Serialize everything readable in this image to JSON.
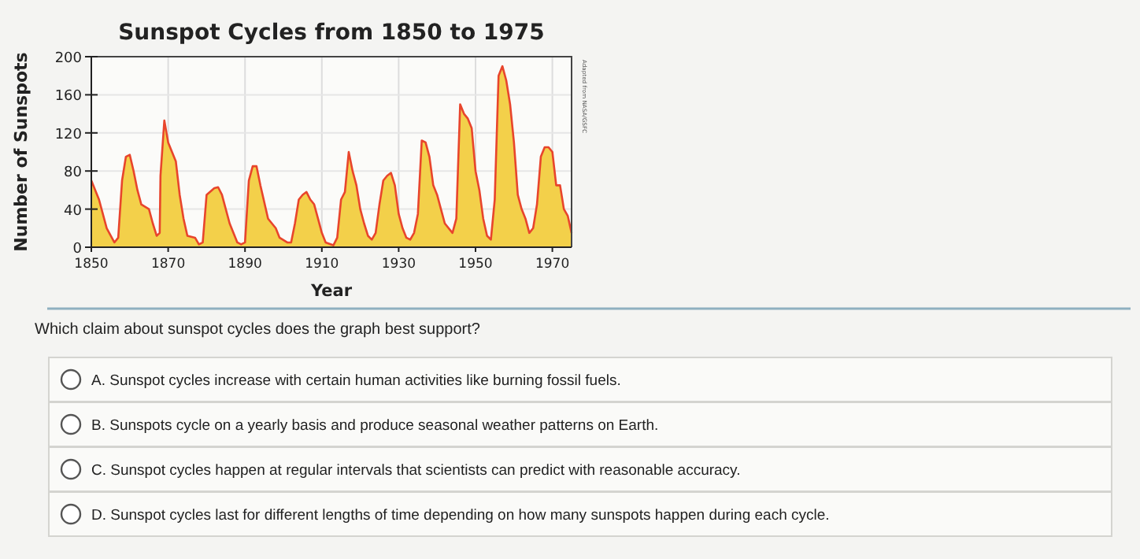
{
  "chart_data": {
    "type": "area",
    "title": "Sunspot Cycles from 1850 to 1975",
    "xlabel": "Year",
    "ylabel": "Number of Sunspots",
    "x": [
      1850,
      1852,
      1854,
      1856,
      1857,
      1858,
      1859,
      1860,
      1861,
      1862,
      1863,
      1865,
      1866,
      1867,
      1867.8,
      1868,
      1869,
      1870,
      1871,
      1872,
      1873,
      1874,
      1875,
      1877,
      1878,
      1879,
      1880,
      1882,
      1883,
      1884,
      1886,
      1888,
      1889,
      1890,
      1891,
      1892,
      1893,
      1894,
      1896,
      1898,
      1899,
      1901,
      1902,
      1903,
      1904,
      1905,
      1906,
      1907,
      1908,
      1909,
      1910,
      1911,
      1913,
      1914,
      1915,
      1916,
      1917,
      1918,
      1919,
      1920,
      1921,
      1922,
      1923,
      1924,
      1925,
      1926,
      1927,
      1928,
      1929,
      1930,
      1931,
      1932,
      1933,
      1934,
      1935,
      1936,
      1937,
      1938,
      1939,
      1940,
      1941,
      1942,
      1944,
      1945,
      1946,
      1947,
      1948,
      1949,
      1950,
      1951,
      1952,
      1953,
      1954,
      1955,
      1956,
      1957,
      1958,
      1959,
      1960,
      1961,
      1962,
      1963,
      1964,
      1965,
      1966,
      1967,
      1968,
      1969,
      1970,
      1971,
      1972,
      1973,
      1974,
      1975
    ],
    "series": [
      {
        "color": "#f3d04a",
        "values": [
          70,
          50,
          20,
          5,
          10,
          70,
          95,
          97,
          80,
          60,
          45,
          40,
          25,
          12,
          15,
          75,
          133,
          110,
          100,
          90,
          55,
          30,
          12,
          10,
          3,
          5,
          55,
          62,
          63,
          55,
          25,
          5,
          3,
          5,
          70,
          85,
          85,
          65,
          30,
          20,
          10,
          5,
          5,
          25,
          50,
          55,
          58,
          50,
          45,
          30,
          15,
          5,
          2,
          10,
          50,
          58,
          100,
          80,
          65,
          40,
          25,
          12,
          8,
          15,
          45,
          70,
          75,
          78,
          65,
          35,
          20,
          10,
          8,
          15,
          35,
          112,
          110,
          95,
          65,
          55,
          40,
          25,
          15,
          30,
          150,
          140,
          135,
          125,
          80,
          60,
          30,
          12,
          8,
          50,
          180,
          190,
          175,
          150,
          110,
          55,
          40,
          30,
          15,
          20,
          45,
          95,
          105,
          105,
          100,
          65,
          65,
          40,
          33,
          15
        ]
      }
    ],
    "xlim": [
      1850,
      1975
    ],
    "xticks": [
      1850,
      1870,
      1890,
      1910,
      1930,
      1950,
      1970
    ],
    "ylim": [
      0,
      200
    ],
    "yticks": [
      0,
      40,
      80,
      120,
      160,
      200
    ],
    "grid": true,
    "annotations": [
      "Adapted from NASA/GSFC",
      "Which claim about sunspot cycles does the graph best support?",
      "A. Sunspot cycles increase with certain human activities like burning fossil fuels.",
      "B. Sunspots cycle on a yearly basis and produce seasonal weather patterns on Earth.",
      "C. Sunspot cycles happen at regular intervals that scientists can predict with reasonable accuracy.",
      "D. Sunspot cycles last for different lengths of time depending on how many sunspots happen during each cycle."
    ]
  }
}
